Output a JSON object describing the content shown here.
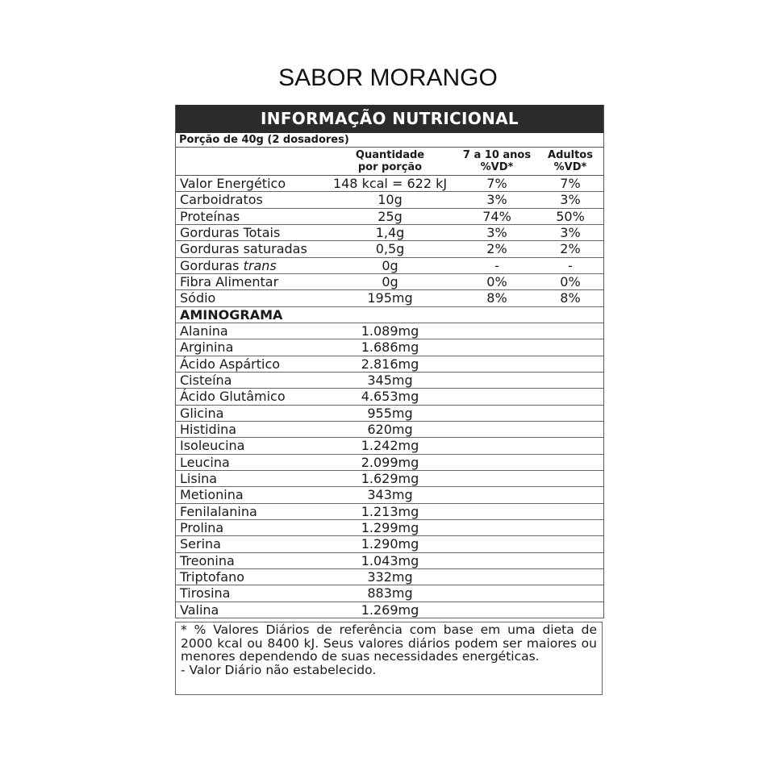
{
  "title": "SABOR MORANGO",
  "table": {
    "heading": "INFORMAÇÃO NUTRICIONAL",
    "portion": "Porção de 40g (2 dosadores)",
    "columns": [
      {
        "line1": "",
        "line2": ""
      },
      {
        "line1": "Quantidade",
        "line2": "por porção"
      },
      {
        "line1": "7 a 10 anos",
        "line2": "%VD*"
      },
      {
        "line1": "Adultos",
        "line2": "%VD*"
      }
    ],
    "nutrients": [
      {
        "name": "Valor Energético",
        "name_italic": "",
        "qty": "148 kcal = 622 kJ",
        "child": "7%",
        "adult": "7%"
      },
      {
        "name": "Carboidratos",
        "name_italic": "",
        "qty": "10g",
        "child": "3%",
        "adult": "3%"
      },
      {
        "name": "Proteínas",
        "name_italic": "",
        "qty": "25g",
        "child": "74%",
        "adult": "50%"
      },
      {
        "name": "Gorduras Totais",
        "name_italic": "",
        "qty": "1,4g",
        "child": "3%",
        "adult": "3%"
      },
      {
        "name": "Gorduras saturadas",
        "name_italic": "",
        "qty": "0,5g",
        "child": "2%",
        "adult": "2%"
      },
      {
        "name": "Gorduras ",
        "name_italic": "trans",
        "qty": "0g",
        "child": "-",
        "adult": "-"
      },
      {
        "name": "Fibra Alimentar",
        "name_italic": "",
        "qty": "0g",
        "child": "0%",
        "adult": "0%"
      },
      {
        "name": "Sódio",
        "name_italic": "",
        "qty": "195mg",
        "child": "8%",
        "adult": "8%"
      }
    ],
    "aminogram_heading": "AMINOGRAMA",
    "aminogram": [
      {
        "name": "Alanina",
        "qty": "1.089mg"
      },
      {
        "name": "Arginina",
        "qty": "1.686mg"
      },
      {
        "name": "Ácido Aspártico",
        "qty": "2.816mg"
      },
      {
        "name": "Cisteína",
        "qty": "345mg"
      },
      {
        "name": "Ácido Glutâmico",
        "qty": "4.653mg"
      },
      {
        "name": "Glicina",
        "qty": "955mg"
      },
      {
        "name": "Histidina",
        "qty": "620mg"
      },
      {
        "name": "Isoleucina",
        "qty": "1.242mg"
      },
      {
        "name": "Leucina",
        "qty": "2.099mg"
      },
      {
        "name": "Lisina",
        "qty": "1.629mg"
      },
      {
        "name": "Metionina",
        "qty": "343mg"
      },
      {
        "name": "Fenilalanina",
        "qty": "1.213mg"
      },
      {
        "name": "Prolina",
        "qty": "1.299mg"
      },
      {
        "name": "Serina",
        "qty": "1.290mg"
      },
      {
        "name": "Treonina",
        "qty": "1.043mg"
      },
      {
        "name": "Triptofano",
        "qty": "332mg"
      },
      {
        "name": "Tirosina",
        "qty": "883mg"
      },
      {
        "name": "Valina",
        "qty": "1.269mg"
      }
    ]
  },
  "footnote": {
    "daily_values": "* % Valores Diários de referência com base em uma dieta de 2000 kcal ou 8400 kJ. Seus valores diários podem ser maiores ou menores dependendo de suas necessidades energéticas.",
    "not_established": "- Valor Diário não estabelecido."
  }
}
